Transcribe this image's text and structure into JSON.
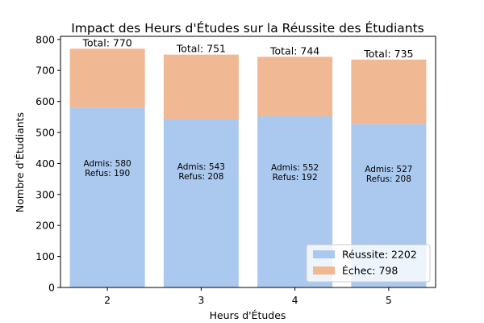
{
  "chart_data": {
    "type": "bar",
    "stacked": true,
    "title": "Impact des Heurs d'Études sur la Réussite des Étudiants",
    "xlabel": "Heurs d'Études",
    "ylabel": "Nombre d'Étudiants",
    "categories": [
      "2",
      "3",
      "4",
      "5"
    ],
    "ylim": [
      0,
      810
    ],
    "yticks": [
      0,
      100,
      200,
      300,
      400,
      500,
      600,
      700,
      800
    ],
    "grid": false,
    "legend_position": "bottom-right",
    "series": [
      {
        "name": "Réussite",
        "values": [
          580,
          543,
          552,
          527
        ],
        "color": "#abc9ee"
      },
      {
        "name": "Échec",
        "values": [
          190,
          208,
          192,
          208
        ],
        "color": "#f1b894"
      }
    ],
    "totals": [
      "Total: 770",
      "Total: 751",
      "Total: 744",
      "Total: 735"
    ],
    "bar_labels_pass": [
      "Admis: 580",
      "Admis: 543",
      "Admis: 552",
      "Admis: 527"
    ],
    "bar_labels_fail": [
      "Refus: 190",
      "Refus: 208",
      "Refus: 192",
      "Refus: 208"
    ],
    "legend_entries": [
      "Réussite: 2202",
      "Échec: 798"
    ]
  }
}
